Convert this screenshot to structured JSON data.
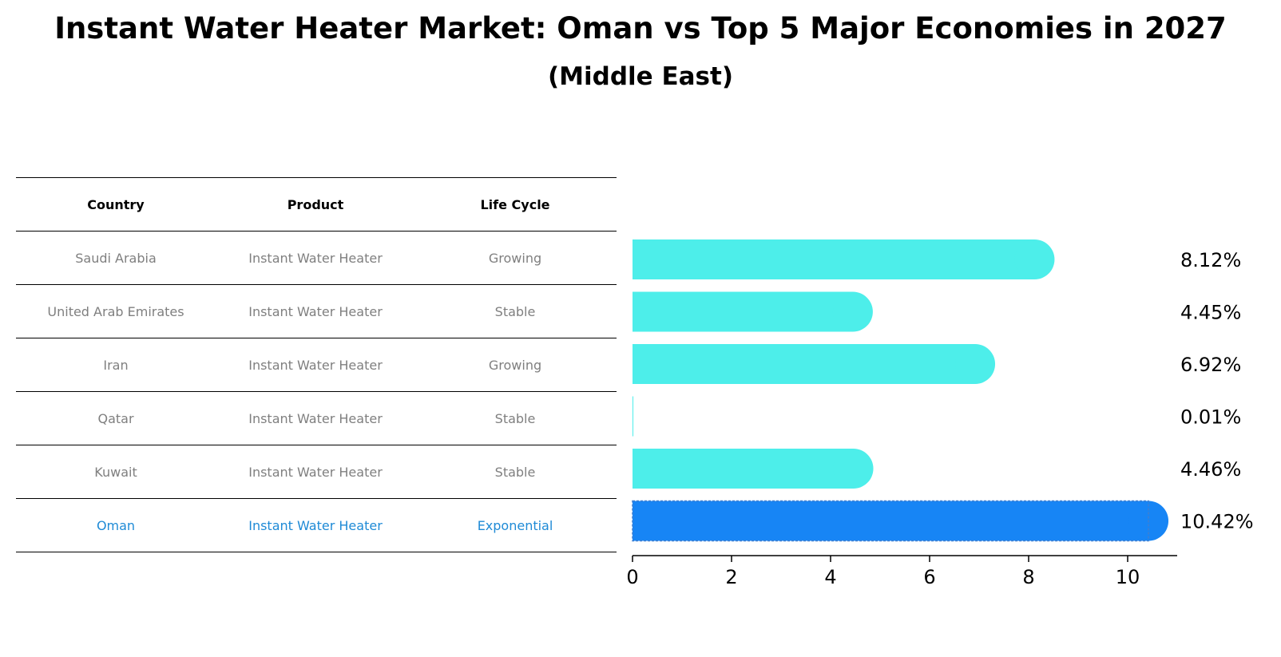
{
  "title": "Instant Water Heater Market: Oman vs Top 5 Major Economies in 2027",
  "subtitle": "(Middle East)",
  "table": {
    "headers": [
      "Country",
      "Product",
      "Life Cycle"
    ],
    "rows": [
      {
        "country": "Saudi Arabia",
        "product": "Instant Water Heater",
        "lifecycle": "Growing"
      },
      {
        "country": "United Arab Emirates",
        "product": "Instant Water Heater",
        "lifecycle": "Stable"
      },
      {
        "country": "Iran",
        "product": "Instant Water Heater",
        "lifecycle": "Growing"
      },
      {
        "country": "Qatar",
        "product": "Instant Water Heater",
        "lifecycle": "Stable"
      },
      {
        "country": "Kuwait",
        "product": "Instant Water Heater",
        "lifecycle": "Stable"
      },
      {
        "country": "Oman",
        "product": "Instant Water Heater",
        "lifecycle": "Exponential"
      }
    ]
  },
  "chart_data": {
    "type": "bar",
    "orientation": "horizontal",
    "categories": [
      "Saudi Arabia",
      "United Arab Emirates",
      "Iran",
      "Qatar",
      "Kuwait",
      "Oman"
    ],
    "values": [
      8.12,
      4.45,
      6.92,
      0.01,
      4.46,
      10.42
    ],
    "value_labels": [
      "8.12%",
      "4.45%",
      "6.92%",
      "0.01%",
      "4.46%",
      "10.42%"
    ],
    "xlim": [
      0,
      11
    ],
    "xticks": [
      0,
      2,
      4,
      6,
      8,
      10
    ],
    "highlight_index": 5,
    "colors": {
      "default": "#4deeea",
      "highlight": "#1785f5"
    },
    "grid": false
  }
}
